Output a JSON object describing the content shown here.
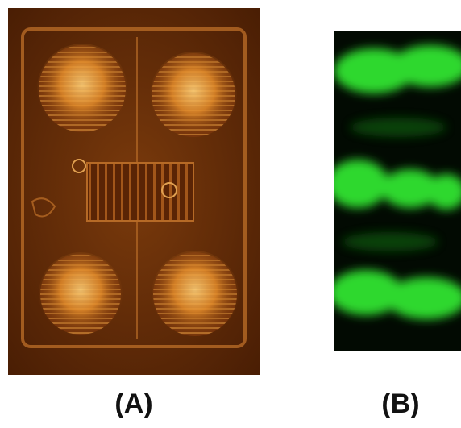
{
  "panels": [
    {
      "label": "(A)",
      "image": "micrograph-amber",
      "accent": "#e89a3a"
    },
    {
      "label": "(B)",
      "image": "fluorescence-green",
      "accent": "#38e038"
    }
  ]
}
